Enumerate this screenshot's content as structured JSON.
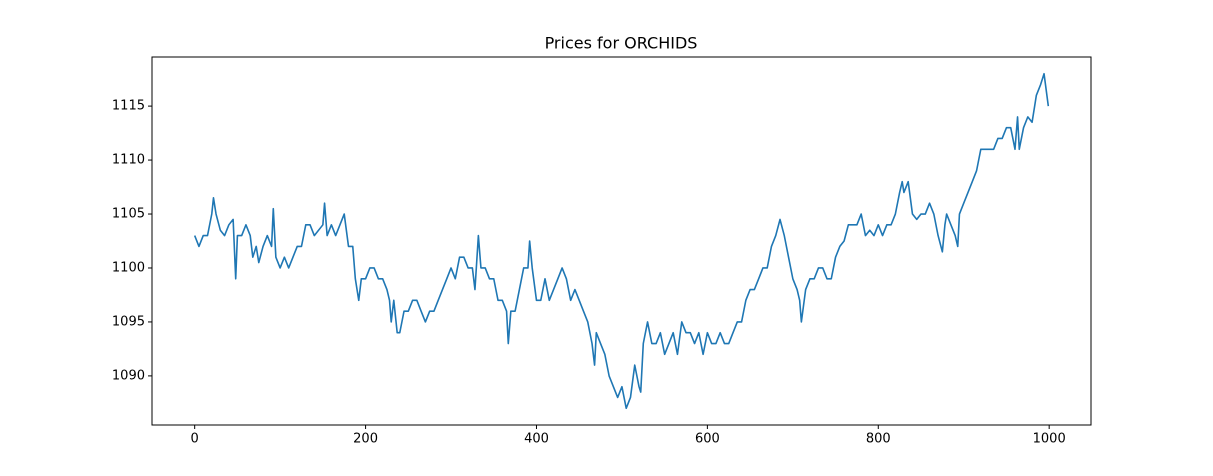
{
  "chart_data": {
    "type": "line",
    "title": "Prices for ORCHIDS",
    "color": "#1f77b4",
    "x": [
      0,
      5,
      10,
      15,
      20,
      22,
      25,
      30,
      35,
      40,
      45,
      48,
      50,
      55,
      60,
      65,
      68,
      72,
      75,
      80,
      85,
      90,
      92,
      95,
      100,
      105,
      110,
      115,
      120,
      125,
      130,
      135,
      140,
      150,
      152,
      155,
      160,
      165,
      170,
      175,
      180,
      185,
      188,
      192,
      195,
      200,
      205,
      210,
      215,
      220,
      225,
      228,
      230,
      233,
      237,
      240,
      245,
      250,
      255,
      260,
      265,
      270,
      275,
      280,
      285,
      290,
      295,
      300,
      305,
      310,
      315,
      320,
      325,
      328,
      332,
      335,
      340,
      345,
      350,
      355,
      360,
      365,
      367,
      370,
      375,
      380,
      385,
      390,
      392,
      395,
      400,
      405,
      410,
      415,
      420,
      425,
      430,
      435,
      440,
      445,
      450,
      455,
      460,
      465,
      468,
      470,
      475,
      480,
      485,
      490,
      495,
      500,
      505,
      510,
      515,
      520,
      522,
      525,
      530,
      535,
      540,
      545,
      550,
      555,
      560,
      565,
      570,
      575,
      580,
      585,
      590,
      595,
      600,
      605,
      610,
      615,
      620,
      625,
      630,
      635,
      640,
      645,
      650,
      655,
      660,
      665,
      670,
      675,
      680,
      685,
      690,
      695,
      700,
      705,
      708,
      710,
      715,
      720,
      725,
      730,
      735,
      740,
      745,
      750,
      755,
      760,
      765,
      770,
      775,
      780,
      785,
      790,
      795,
      800,
      805,
      810,
      815,
      820,
      825,
      828,
      830,
      835,
      840,
      845,
      850,
      855,
      860,
      865,
      870,
      875,
      878,
      880,
      885,
      890,
      893,
      895,
      900,
      905,
      910,
      915,
      920,
      925,
      930,
      935,
      940,
      945,
      950,
      955,
      960,
      963,
      965,
      970,
      975,
      980,
      983,
      985,
      990,
      994,
      999
    ],
    "values": [
      1103,
      1102,
      1103,
      1103,
      1105,
      1106.5,
      1105,
      1103.5,
      1103,
      1104,
      1104.5,
      1099,
      1103,
      1103,
      1104,
      1103,
      1101,
      1102,
      1100.5,
      1102,
      1103,
      1102,
      1105.5,
      1101,
      1100,
      1101,
      1100,
      1101,
      1102,
      1102,
      1104,
      1104,
      1103,
      1104,
      1106,
      1103,
      1104,
      1103,
      1104,
      1105,
      1102,
      1102,
      1099,
      1097,
      1099,
      1099,
      1100,
      1100,
      1099,
      1099,
      1098,
      1097,
      1095,
      1097,
      1094,
      1094,
      1096,
      1096,
      1097,
      1097,
      1096,
      1095,
      1096,
      1096,
      1097,
      1098,
      1099,
      1100,
      1099,
      1101,
      1101,
      1100,
      1100,
      1098,
      1103,
      1100,
      1100,
      1099,
      1099,
      1097,
      1097,
      1096,
      1093,
      1096,
      1096,
      1098,
      1100,
      1100,
      1102.5,
      1100,
      1097,
      1097,
      1099,
      1097,
      1098,
      1099,
      1100,
      1099,
      1097,
      1098,
      1097,
      1096,
      1095,
      1093,
      1091,
      1094,
      1093,
      1092,
      1090,
      1089,
      1088,
      1089,
      1087,
      1088,
      1091,
      1089,
      1088.5,
      1093,
      1095,
      1093,
      1093,
      1094,
      1092,
      1093,
      1094,
      1092,
      1095,
      1094,
      1094,
      1093,
      1094,
      1092,
      1094,
      1093,
      1093,
      1094,
      1093,
      1093,
      1094,
      1095,
      1095,
      1097,
      1098,
      1098,
      1099,
      1100,
      1100,
      1102,
      1103,
      1104.5,
      1103,
      1101,
      1099,
      1098,
      1097,
      1095,
      1098,
      1099,
      1099,
      1100,
      1100,
      1099,
      1099,
      1101,
      1102,
      1102.5,
      1104,
      1104,
      1104,
      1105,
      1103,
      1103.5,
      1103,
      1104,
      1103,
      1104,
      1104,
      1105,
      1107,
      1108,
      1107,
      1108,
      1105,
      1104.5,
      1105,
      1105,
      1106,
      1105,
      1103,
      1101.5,
      1104,
      1105,
      1104,
      1103,
      1102,
      1105,
      1106,
      1107,
      1108,
      1109,
      1111,
      1111,
      1111,
      1111,
      1112,
      1112,
      1113,
      1113,
      1111,
      1114,
      1111,
      1113,
      1114,
      1113.5,
      1115,
      1116,
      1117,
      1118,
      1115
    ],
    "xlim": [
      -49.95,
      1048.95
    ],
    "xticks": [
      0,
      200,
      400,
      600,
      800,
      1000
    ],
    "ylim": [
      1085.45,
      1119.55
    ],
    "yticks": [
      1090,
      1095,
      1100,
      1105,
      1110,
      1115
    ]
  }
}
